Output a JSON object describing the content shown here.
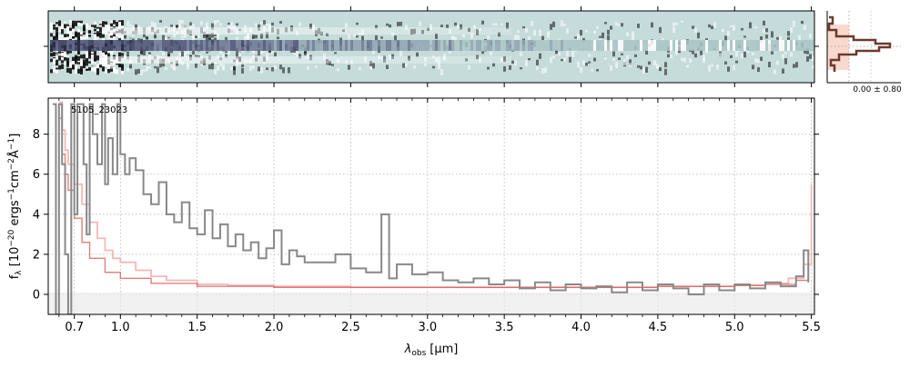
{
  "chart_data": {
    "type": "line",
    "object_label": "5105_23023",
    "xlabel_main": "λ",
    "xlabel_sub": "obs",
    "xlabel_unit": "[μm]",
    "ylabel": "f_λ [10^-20 ergs^-1 cm^-2 Å^-1]",
    "xlim": [
      0.53,
      5.52
    ],
    "ylim": [
      -1.0,
      9.8
    ],
    "x_tick_positions": [
      0.7,
      1.0,
      1.5,
      2.0,
      2.5,
      3.0,
      3.5,
      4.0,
      4.5,
      5.0,
      5.5
    ],
    "x_tick_labels": [
      "0.7",
      "1.0",
      "1.5",
      "2.0",
      "2.5",
      "3.0",
      "3.5",
      "4.0",
      "4.5",
      "5.0",
      "5.5"
    ],
    "y_tick_positions": [
      0,
      2,
      4,
      6,
      8
    ],
    "y_tick_labels": [
      "0",
      "2",
      "4",
      "6",
      "8"
    ],
    "grid": true,
    "side_panel_label": "0.00 ± 0.80",
    "colors": {
      "spectrum": "#888888",
      "error": "#f4b8b8",
      "model": "#d9534f",
      "image_bg": "#c5dcdb",
      "trace": "#3b3f63",
      "profile": "#6b3a2e",
      "profile_fill": "#f8cfc0"
    },
    "series": [
      {
        "values_x": [
          0.56,
          0.58,
          0.6,
          0.62,
          0.64,
          0.66,
          0.68,
          0.7,
          0.72,
          0.74,
          0.76,
          0.78,
          0.8,
          0.82,
          0.85,
          0.88,
          0.9,
          0.92,
          0.95,
          0.98,
          1.0,
          1.03,
          1.06,
          1.1,
          1.15,
          1.2,
          1.25,
          1.3,
          1.35,
          1.4,
          1.45,
          1.5,
          1.55,
          1.6,
          1.65,
          1.7,
          1.75,
          1.8,
          1.85,
          1.9,
          1.95,
          2.0,
          2.05,
          2.1,
          2.15,
          2.2,
          2.3,
          2.4,
          2.5,
          2.6,
          2.7,
          2.75,
          2.8,
          2.9,
          3.0,
          3.1,
          3.2,
          3.3,
          3.4,
          3.5,
          3.6,
          3.7,
          3.8,
          3.9,
          4.0,
          4.1,
          4.2,
          4.3,
          4.4,
          4.5,
          4.6,
          4.7,
          4.8,
          4.9,
          5.0,
          5.1,
          5.2,
          5.3,
          5.4,
          5.45,
          5.48
        ],
        "values_y": [
          9.5,
          -1.0,
          9.5,
          6.5,
          2.0,
          -1.0,
          9.5,
          4.0,
          9.5,
          9.5,
          6.5,
          3.0,
          9.5,
          8.0,
          6.5,
          9.5,
          5.5,
          7.8,
          6.0,
          9.5,
          7.0,
          6.0,
          6.8,
          6.2,
          5.0,
          4.5,
          5.6,
          4.0,
          3.6,
          4.6,
          3.3,
          3.0,
          4.2,
          2.8,
          3.5,
          2.4,
          3.0,
          2.2,
          2.6,
          1.8,
          2.3,
          3.2,
          1.5,
          2.2,
          1.9,
          1.6,
          1.6,
          2.0,
          1.3,
          1.1,
          4.0,
          0.8,
          1.5,
          1.0,
          1.1,
          0.7,
          0.6,
          0.8,
          0.5,
          0.7,
          0.3,
          0.6,
          0.2,
          0.5,
          0.3,
          0.4,
          0.1,
          0.6,
          0.2,
          0.5,
          0.3,
          0.0,
          0.5,
          0.2,
          0.5,
          0.3,
          0.6,
          0.4,
          0.9,
          2.2,
          0.6
        ]
      },
      {
        "values_x": [
          0.6,
          0.62,
          0.64,
          0.66,
          0.7,
          0.75,
          0.8,
          0.85,
          0.9,
          0.95,
          1.0,
          1.1,
          1.2,
          1.3,
          1.5,
          1.7,
          2.0,
          2.5,
          3.0,
          3.5,
          4.0,
          4.5,
          5.0,
          5.2,
          5.35,
          5.45,
          5.5
        ],
        "values_y": [
          9.6,
          8.2,
          7.2,
          6.5,
          5.5,
          4.5,
          3.6,
          2.8,
          2.2,
          1.8,
          1.6,
          1.2,
          0.9,
          0.7,
          0.5,
          0.45,
          0.4,
          0.35,
          0.35,
          0.35,
          0.35,
          0.4,
          0.45,
          0.55,
          0.8,
          1.5,
          5.5
        ]
      },
      {
        "values_x": [
          0.6,
          0.62,
          0.64,
          0.66,
          0.7,
          0.75,
          0.8,
          0.9,
          1.0,
          1.2,
          1.5,
          2.0,
          2.5,
          3.0,
          3.5,
          4.0,
          4.5,
          5.0,
          5.2,
          5.4,
          5.48
        ],
        "values_y": [
          8.8,
          7.0,
          6.0,
          5.2,
          3.8,
          2.6,
          1.8,
          1.1,
          0.8,
          0.55,
          0.4,
          0.35,
          0.35,
          0.35,
          0.35,
          0.35,
          0.4,
          0.45,
          0.5,
          0.7,
          1.1
        ]
      }
    ]
  }
}
